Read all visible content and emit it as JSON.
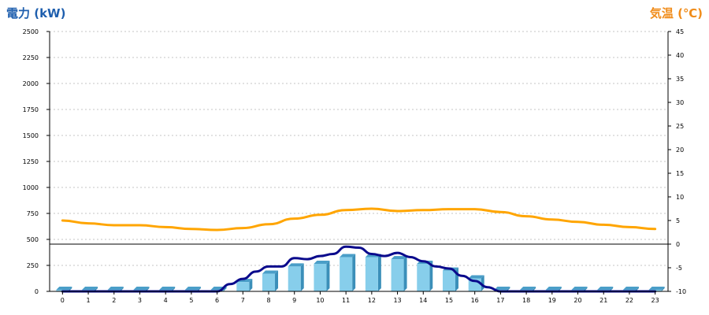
{
  "chart_data": {
    "type": "bar",
    "left_axis_title": "電力 (kW)",
    "right_axis_title": "気温 (℃)",
    "left_ylim": [
      0,
      2500
    ],
    "left_ticks": [
      "0",
      "250",
      "500",
      "750",
      "1000",
      "1250",
      "1500",
      "1750",
      "2000",
      "2250",
      "2500"
    ],
    "right_ylim": [
      -10,
      45
    ],
    "right_ticks": [
      "-10",
      "-5",
      "0",
      "5",
      "10",
      "15",
      "20",
      "25",
      "30",
      "35",
      "40",
      "45"
    ],
    "categories": [
      "0",
      "1",
      "2",
      "3",
      "4",
      "5",
      "6",
      "7",
      "8",
      "9",
      "10",
      "11",
      "12",
      "13",
      "14",
      "15",
      "16",
      "17",
      "18",
      "19",
      "20",
      "21",
      "22",
      "23"
    ],
    "grid": true,
    "colors": {
      "bars": "#87ceeb",
      "bar_top": "#4a9ec8",
      "power_line": "#0a0a8c",
      "temperature_line": "#ffa500",
      "left_title": "#1f5fae",
      "right_title": "#f08c1a"
    },
    "series": [
      {
        "kind": "bar",
        "values": [
          5,
          5,
          5,
          5,
          5,
          5,
          5,
          90,
          170,
          240,
          265,
          330,
          330,
          310,
          265,
          200,
          125,
          0,
          0,
          0,
          0,
          0,
          0,
          0
        ]
      },
      {
        "kind": "line",
        "axis": "left",
        "x": [
          0,
          6,
          6.5,
          7,
          7.5,
          8,
          8.5,
          9,
          9.5,
          10,
          10.5,
          11,
          11.5,
          12,
          12.5,
          13,
          13.5,
          14,
          14.5,
          15,
          15.5,
          16,
          16.5,
          17,
          23
        ],
        "values": [
          0,
          0,
          70,
          120,
          190,
          240,
          240,
          320,
          310,
          340,
          360,
          430,
          420,
          360,
          340,
          370,
          330,
          290,
          240,
          220,
          150,
          100,
          40,
          0,
          0
        ]
      },
      {
        "kind": "line",
        "axis": "right",
        "x": [
          0,
          1,
          2,
          3,
          4,
          5,
          6,
          7,
          8,
          9,
          10,
          11,
          12,
          13,
          14,
          15,
          16,
          17,
          18,
          19,
          20,
          21,
          22,
          23
        ],
        "values": [
          5.0,
          4.4,
          4.0,
          4.0,
          3.6,
          3.2,
          3.0,
          3.4,
          4.2,
          5.4,
          6.2,
          7.2,
          7.5,
          7.0,
          7.2,
          7.4,
          7.4,
          6.8,
          5.9,
          5.2,
          4.7,
          4.1,
          3.6,
          3.2
        ]
      }
    ]
  }
}
